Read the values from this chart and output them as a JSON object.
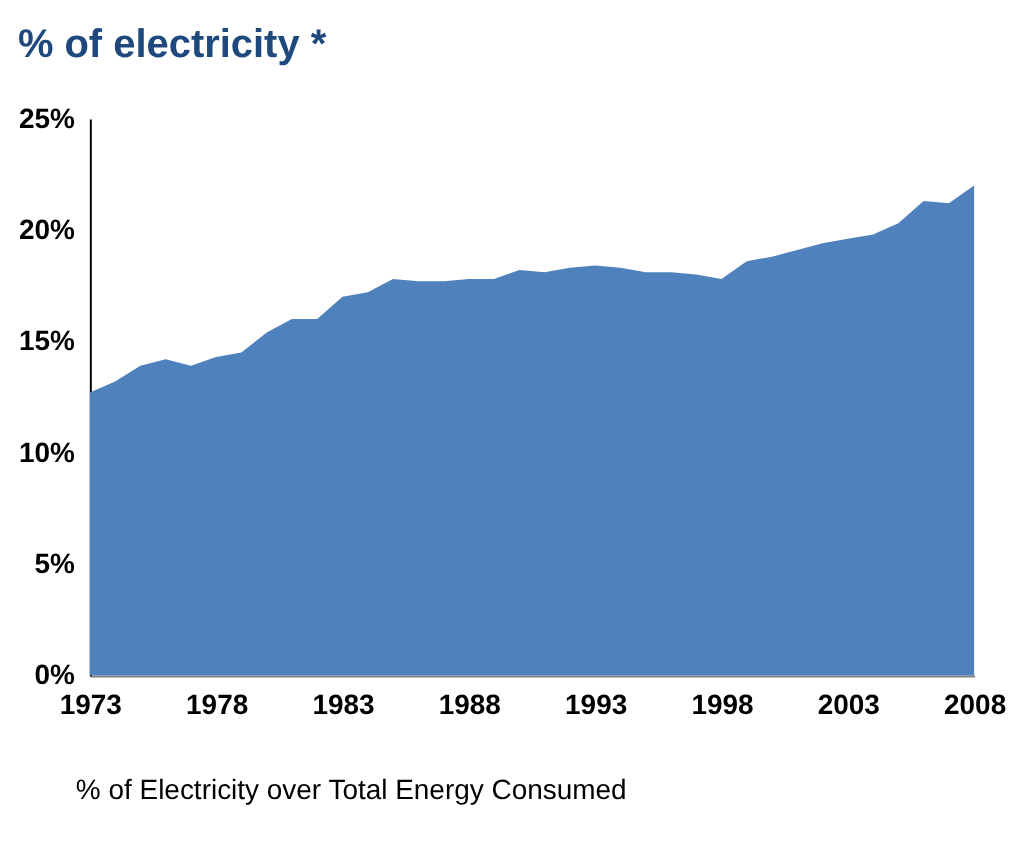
{
  "chart_data": {
    "type": "area",
    "title": "% of electricity *",
    "x": [
      1973,
      1974,
      1975,
      1976,
      1977,
      1978,
      1979,
      1980,
      1981,
      1982,
      1983,
      1984,
      1985,
      1986,
      1987,
      1988,
      1989,
      1990,
      1991,
      1992,
      1993,
      1994,
      1995,
      1996,
      1997,
      1998,
      1999,
      2000,
      2001,
      2002,
      2003,
      2004,
      2005,
      2006,
      2007,
      2008
    ],
    "series": [
      {
        "color": "#4f81bd",
        "values": [
          12.7,
          13.2,
          13.9,
          14.2,
          13.9,
          14.3,
          14.5,
          15.4,
          16.0,
          16.0,
          17.0,
          17.2,
          17.8,
          17.7,
          17.7,
          17.8,
          17.8,
          18.2,
          18.1,
          18.3,
          18.4,
          18.3,
          18.1,
          18.1,
          18.0,
          17.8,
          18.6,
          18.8,
          19.1,
          19.4,
          19.6,
          19.8,
          20.3,
          21.3,
          21.2,
          22.0
        ]
      }
    ],
    "xlim": [
      1973,
      2008
    ],
    "xticks": [
      1973,
      1978,
      1983,
      1988,
      1993,
      1998,
      2003,
      2008
    ],
    "ylim": [
      0,
      25
    ],
    "yticks": [
      {
        "value": 0,
        "label": "0%"
      },
      {
        "value": 5,
        "label": "5%"
      },
      {
        "value": 10,
        "label": "10%"
      },
      {
        "value": 15,
        "label": "15%"
      },
      {
        "value": 20,
        "label": "20%"
      },
      {
        "value": 25,
        "label": "25%"
      }
    ],
    "annotations": [
      "% of Electricity over Total Energy Consumed"
    ],
    "grid": false
  }
}
